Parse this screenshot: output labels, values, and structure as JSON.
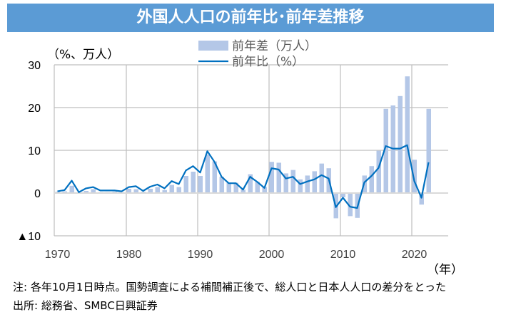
{
  "chart_data": {
    "type": "bar+line",
    "title": "外国人人口の前年比･前年差推移",
    "ylabel": "（%、万人）",
    "xlabel": "（年）",
    "ylim": [
      -10,
      30
    ],
    "yticks": [
      {
        "v": 30,
        "label": "30"
      },
      {
        "v": 20,
        "label": "20"
      },
      {
        "v": 10,
        "label": "10"
      },
      {
        "v": 0,
        "label": "0"
      },
      {
        "v": -10,
        "label": "▲10"
      }
    ],
    "xticks": [
      1970,
      1980,
      1990,
      2000,
      2010,
      2020
    ],
    "grid": true,
    "legend": {
      "placement": "top-center",
      "entries": [
        "前年差（万人）",
        "前年比（%）"
      ]
    },
    "colors": {
      "bar": "#b4c7e7",
      "line": "#0070c0",
      "title_bg": "#5b9bd5"
    },
    "x": [
      1970,
      1971,
      1972,
      1973,
      1974,
      1975,
      1976,
      1977,
      1978,
      1979,
      1980,
      1981,
      1982,
      1983,
      1984,
      1985,
      1986,
      1987,
      1988,
      1989,
      1990,
      1991,
      1992,
      1993,
      1994,
      1995,
      1996,
      1997,
      1998,
      1999,
      2000,
      2001,
      2002,
      2003,
      2004,
      2005,
      2006,
      2007,
      2008,
      2009,
      2010,
      2011,
      2012,
      2013,
      2014,
      2015,
      2016,
      2017,
      2018,
      2019,
      2020,
      2021,
      2022
    ],
    "series": [
      {
        "name": "前年差（万人）",
        "type": "bar",
        "values": [
          0.3,
          0.4,
          1.7,
          0.1,
          0.5,
          0.9,
          0.2,
          0.2,
          0.3,
          0.2,
          1.0,
          0.9,
          0.3,
          1.0,
          1.4,
          0.7,
          1.9,
          1.4,
          4.0,
          5.0,
          4.0,
          9.0,
          7.4,
          3.8,
          2.4,
          2.4,
          0.8,
          4.4,
          2.6,
          1.4,
          7.3,
          7.1,
          4.6,
          5.4,
          3.2,
          4.1,
          5.1,
          6.9,
          5.8,
          -5.9,
          -1.0,
          -5.4,
          -5.8,
          4.1,
          6.3,
          9.9,
          19.7,
          20.5,
          22.7,
          27.3,
          7.8,
          -2.7,
          19.7
        ]
      },
      {
        "name": "前年比（%）",
        "type": "line",
        "values": [
          0.4,
          0.7,
          2.9,
          0.2,
          1.1,
          1.4,
          0.6,
          0.6,
          0.6,
          0.4,
          1.4,
          1.6,
          0.5,
          1.5,
          2.0,
          1.1,
          2.8,
          2.1,
          5.3,
          6.3,
          4.8,
          9.8,
          7.3,
          3.8,
          2.3,
          2.3,
          0.8,
          3.8,
          2.6,
          1.2,
          5.8,
          5.5,
          3.4,
          3.8,
          2.1,
          2.7,
          3.2,
          4.2,
          3.4,
          -3.3,
          -1.1,
          -3.2,
          -3.5,
          2.5,
          4.0,
          5.9,
          11.0,
          10.4,
          10.4,
          11.2,
          2.8,
          -1.1,
          7.2
        ]
      }
    ]
  },
  "notes": {
    "note": "注: 各年10月1日時点。国勢調査による補間補正後で、総人口と日本人人口の差分をとった",
    "source": "出所: 総務省、SMBC日興証券"
  }
}
